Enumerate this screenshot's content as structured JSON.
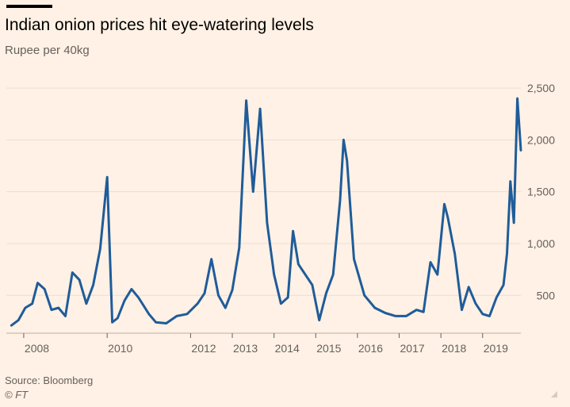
{
  "header": {
    "title": "Indian onion prices hit eye-watering levels",
    "subtitle": "Rupee per 40kg"
  },
  "footer": {
    "source": "Source: Bloomberg",
    "copyright": "© FT"
  },
  "colors": {
    "background": "#fff1e5",
    "line": "#1f5c99",
    "grid": "#e9ded3",
    "axis": "#66605c"
  },
  "icons": [
    "ft-top-bar",
    "resize-corner-icon"
  ],
  "chart_data": {
    "type": "line",
    "title": "Indian onion prices hit eye-watering levels",
    "subtitle": "Rupee per 40kg",
    "xlabel": "",
    "ylabel": "",
    "ylim": [
      150,
      2500
    ],
    "xlim": [
      "2007-08",
      "2019-12"
    ],
    "grid": "horizontal",
    "y_axis_position": "right",
    "y_ticks": [
      500,
      1000,
      1500,
      2000,
      2500
    ],
    "y_tick_labels": [
      "500",
      "1,000",
      "1,500",
      "2,000",
      "2,500"
    ],
    "x_ticks": [
      "2008",
      "2010",
      "2012",
      "2013",
      "2014",
      "2015",
      "2016",
      "2017",
      "2018",
      "2019"
    ],
    "x_tick_labels": [
      "2008",
      "2010",
      "2012",
      "2013",
      "2014",
      "2015",
      "2016",
      "2017",
      "2018",
      "2019"
    ],
    "series": [
      {
        "values": [
          [
            "2007-09-15",
            210
          ],
          [
            "2007-11-15",
            260
          ],
          [
            "2008-01-15",
            380
          ],
          [
            "2008-03-15",
            420
          ],
          [
            "2008-05-01",
            620
          ],
          [
            "2008-07-01",
            560
          ],
          [
            "2008-09-01",
            360
          ],
          [
            "2008-11-01",
            380
          ],
          [
            "2009-01-01",
            300
          ],
          [
            "2009-03-01",
            720
          ],
          [
            "2009-05-01",
            650
          ],
          [
            "2009-07-01",
            420
          ],
          [
            "2009-09-01",
            600
          ],
          [
            "2009-11-01",
            950
          ],
          [
            "2010-01-01",
            1640
          ],
          [
            "2010-02-15",
            240
          ],
          [
            "2010-04-01",
            280
          ],
          [
            "2010-06-01",
            450
          ],
          [
            "2010-08-01",
            560
          ],
          [
            "2010-10-01",
            480
          ],
          [
            "2011-01-01",
            320
          ],
          [
            "2011-03-01",
            240
          ],
          [
            "2011-06-01",
            230
          ],
          [
            "2011-09-01",
            300
          ],
          [
            "2011-12-01",
            320
          ],
          [
            "2012-03-01",
            420
          ],
          [
            "2012-05-01",
            520
          ],
          [
            "2012-07-01",
            850
          ],
          [
            "2012-09-01",
            500
          ],
          [
            "2012-11-01",
            380
          ],
          [
            "2013-01-01",
            550
          ],
          [
            "2013-03-01",
            960
          ],
          [
            "2013-05-01",
            2380
          ],
          [
            "2013-07-01",
            1500
          ],
          [
            "2013-09-01",
            2300
          ],
          [
            "2013-11-01",
            1200
          ],
          [
            "2014-01-01",
            700
          ],
          [
            "2014-03-01",
            420
          ],
          [
            "2014-05-01",
            480
          ],
          [
            "2014-06-15",
            1120
          ],
          [
            "2014-08-01",
            800
          ],
          [
            "2014-10-01",
            700
          ],
          [
            "2014-12-01",
            600
          ],
          [
            "2015-02-01",
            260
          ],
          [
            "2015-04-01",
            520
          ],
          [
            "2015-06-01",
            700
          ],
          [
            "2015-08-01",
            1420
          ],
          [
            "2015-09-01",
            2000
          ],
          [
            "2015-10-01",
            1800
          ],
          [
            "2015-12-01",
            850
          ],
          [
            "2016-03-01",
            500
          ],
          [
            "2016-06-01",
            380
          ],
          [
            "2016-09-01",
            330
          ],
          [
            "2016-12-01",
            300
          ],
          [
            "2017-03-01",
            300
          ],
          [
            "2017-06-01",
            360
          ],
          [
            "2017-08-01",
            340
          ],
          [
            "2017-10-01",
            820
          ],
          [
            "2017-12-01",
            700
          ],
          [
            "2018-02-01",
            1380
          ],
          [
            "2018-03-01",
            1250
          ],
          [
            "2018-05-01",
            900
          ],
          [
            "2018-07-01",
            360
          ],
          [
            "2018-09-01",
            580
          ],
          [
            "2018-11-01",
            420
          ],
          [
            "2019-01-01",
            320
          ],
          [
            "2019-03-01",
            300
          ],
          [
            "2019-05-01",
            480
          ],
          [
            "2019-07-01",
            600
          ],
          [
            "2019-08-01",
            900
          ],
          [
            "2019-09-01",
            1600
          ],
          [
            "2019-10-01",
            1200
          ],
          [
            "2019-11-01",
            2400
          ],
          [
            "2019-12-01",
            1900
          ]
        ]
      }
    ]
  }
}
